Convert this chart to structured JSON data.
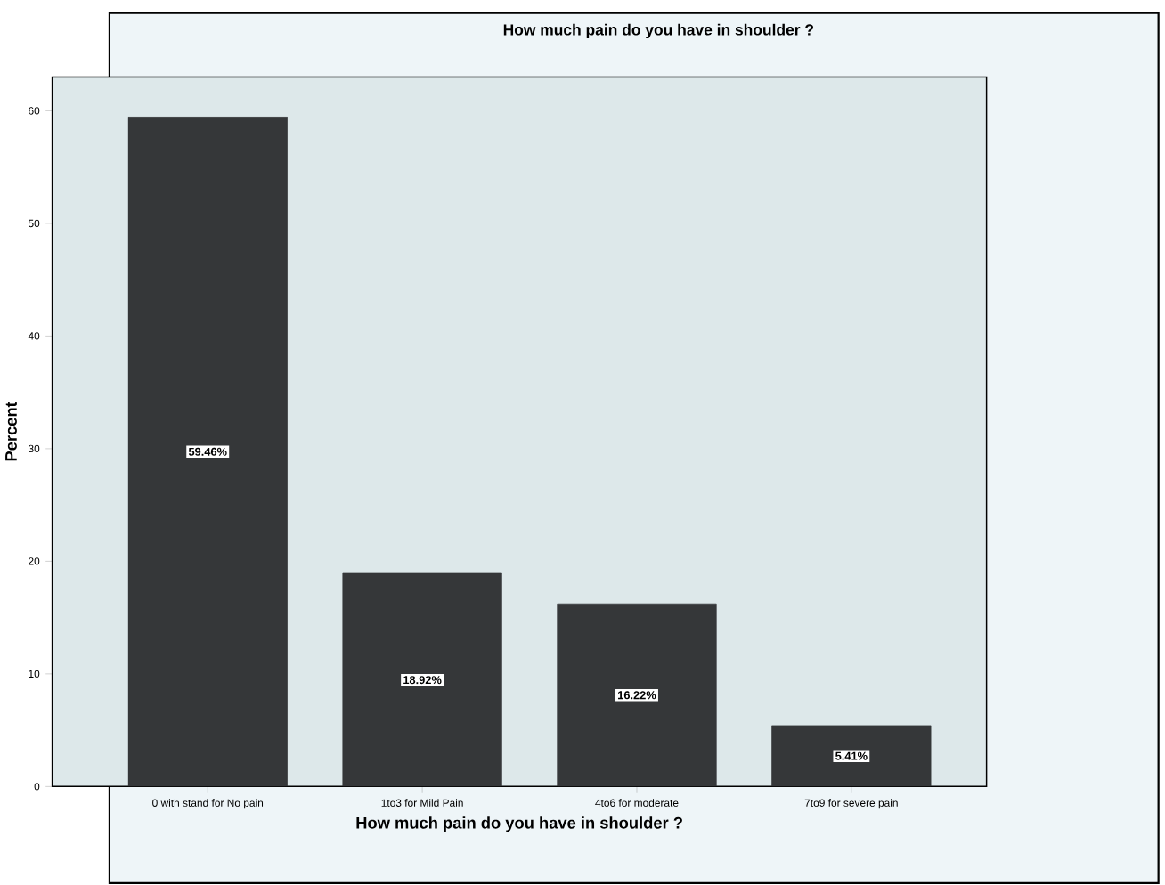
{
  "chart_data": {
    "type": "bar",
    "title": "How much pain do you have in shoulder ?",
    "xlabel": "How much pain do you have in shoulder ?",
    "ylabel": "Percent",
    "categories": [
      "0 with stand for No pain",
      "1to3 for Mild Pain",
      "4to6 for moderate",
      "7to9 for severe pain"
    ],
    "values": [
      59.46,
      18.92,
      16.22,
      5.41
    ],
    "value_labels": [
      "59.46%",
      "18.92%",
      "16.22%",
      "5.41%"
    ],
    "color": "#353739",
    "ylim": [
      0,
      63
    ],
    "yticks": [
      0,
      10,
      20,
      30,
      40,
      50,
      60
    ]
  }
}
